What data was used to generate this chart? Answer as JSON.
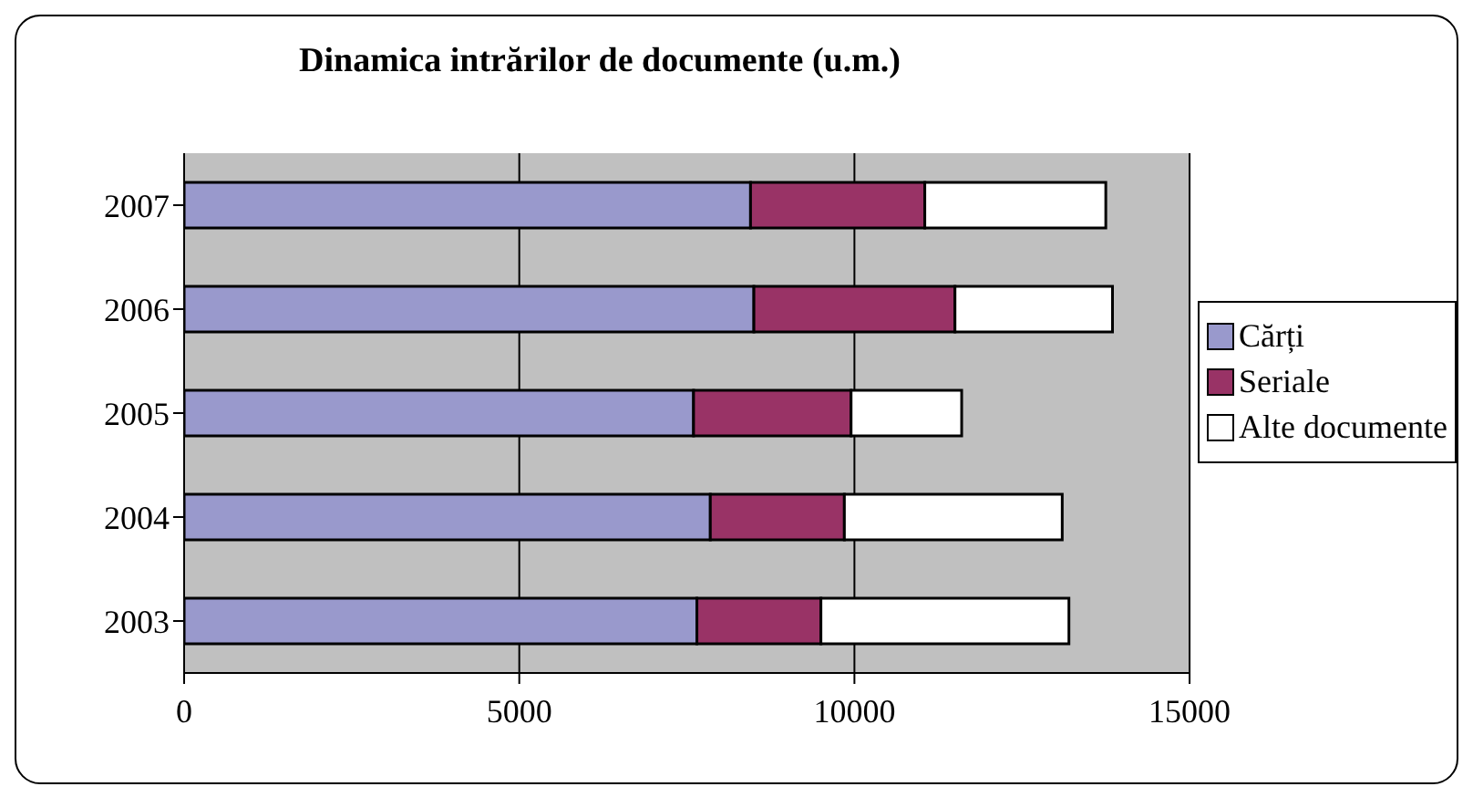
{
  "chart_data": {
    "type": "bar",
    "orientation": "horizontal",
    "stacked": true,
    "title": "Dinamica intrărilor de documente (u.m.)",
    "categories": [
      "2007",
      "2006",
      "2005",
      "2004",
      "2003"
    ],
    "series": [
      {
        "name": "Cărți",
        "color": "#9999cc",
        "values": [
          8450,
          8500,
          7600,
          7850,
          7650
        ]
      },
      {
        "name": "Seriale",
        "color": "#993366",
        "values": [
          2600,
          3000,
          2350,
          2000,
          1850
        ]
      },
      {
        "name": "Alte documente",
        "color": "#ffffff",
        "values": [
          2700,
          2350,
          1650,
          3250,
          3700
        ]
      }
    ],
    "xlim": [
      0,
      15000
    ],
    "xticks": [
      0,
      5000,
      10000,
      15000
    ],
    "grid": "x",
    "legend": "right"
  }
}
